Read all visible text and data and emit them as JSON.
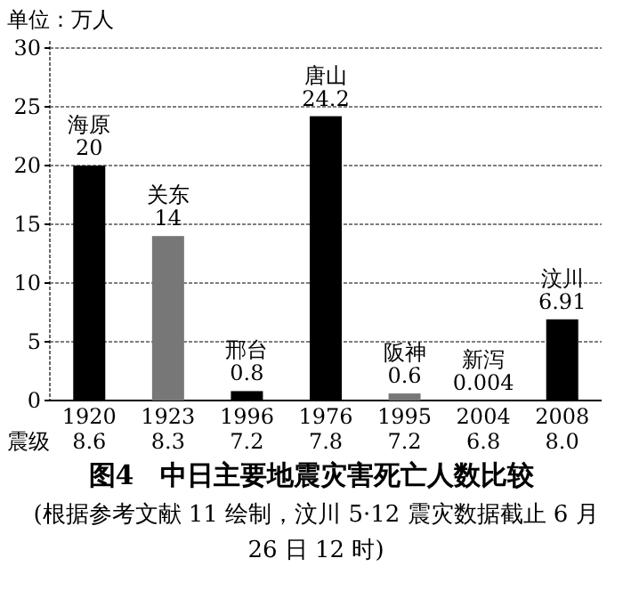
{
  "chart_data": {
    "type": "bar",
    "title": "图4　中日主要地震灾害死亡人数比较",
    "subtitle": "(根据参考文献 11 绘制，汶川 5·12 震灾数据截止 6 月 26 日 12 时)",
    "ylabel": "单位：万人",
    "annotations": [
      "震级"
    ],
    "categories": [
      "1920\n8.6",
      "1923\n8.3",
      "1996\n7.2",
      "1976\n7.8",
      "1995\n7.2",
      "2004\n6.8",
      "2008\n8.0"
    ],
    "values": [
      20,
      14,
      0.8,
      24.2,
      0.6,
      0.004,
      6.91
    ],
    "value_labels": [
      "海原\n20",
      "关东\n14",
      "邢台\n0.8",
      "唐山\n24.2",
      "阪神\n0.6",
      "新泻\n0.004",
      "汶川\n6.91"
    ],
    "colors": [
      "#000000",
      "#777777",
      "#000000",
      "#000000",
      "#777777",
      "#000000",
      "#000000"
    ],
    "ylim": [
      0,
      30
    ],
    "yticks": [
      0,
      5,
      10,
      15,
      20,
      25,
      30
    ],
    "grid": "y"
  }
}
